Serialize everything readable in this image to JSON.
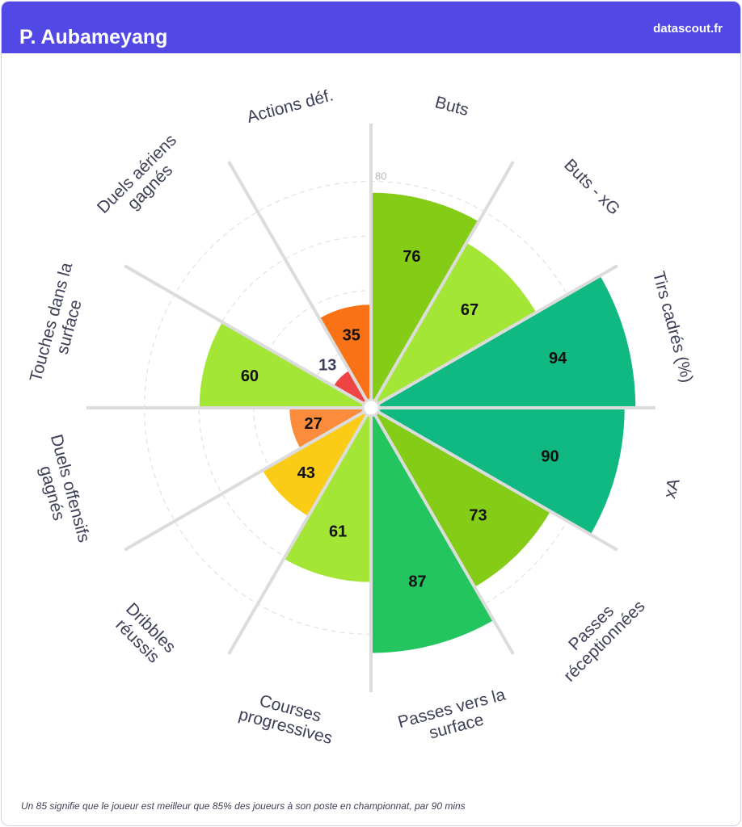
{
  "header": {
    "player_name": "P. Aubameyang",
    "brand": "datascout.fr"
  },
  "footnote": "Un 85 signifie que le joueur est meilleur que 85% des joueurs à son poste en championnat, par 90 mins",
  "colors": {
    "header_bg": "#5148e6",
    "grid": "#dcdcdc",
    "label": "#3e4058"
  },
  "chart_data": {
    "type": "polar-bar",
    "ring_tick_label": "80",
    "scale_max": 100,
    "categories": [
      {
        "label": [
          "Buts"
        ],
        "value": 76,
        "color": "#84cc16"
      },
      {
        "label": [
          "Buts - xG"
        ],
        "value": 67,
        "color": "#a3e635"
      },
      {
        "label": [
          "Tirs cadrés (%)"
        ],
        "value": 94,
        "color": "#10b981"
      },
      {
        "label": [
          "xA"
        ],
        "value": 90,
        "color": "#10b981"
      },
      {
        "label": [
          "Passes",
          "réceptionnées"
        ],
        "value": 73,
        "color": "#84cc16"
      },
      {
        "label": [
          "Passes vers la",
          "surface"
        ],
        "value": 87,
        "color": "#22c55e"
      },
      {
        "label": [
          "Courses",
          "progressives"
        ],
        "value": 61,
        "color": "#a3e635"
      },
      {
        "label": [
          "Dribbles",
          "réussis"
        ],
        "value": 43,
        "color": "#facc15"
      },
      {
        "label": [
          "Duels offensifs",
          "gagnés"
        ],
        "value": 27,
        "color": "#fb8c3c"
      },
      {
        "label": [
          "Touches dans la",
          "surface"
        ],
        "value": 60,
        "color": "#a3e635"
      },
      {
        "label": [
          "Duels aériens",
          "gagnés"
        ],
        "value": 13,
        "color": "#ef4444"
      },
      {
        "label": [
          "Actions déf."
        ],
        "value": 35,
        "color": "#f97316"
      }
    ]
  }
}
